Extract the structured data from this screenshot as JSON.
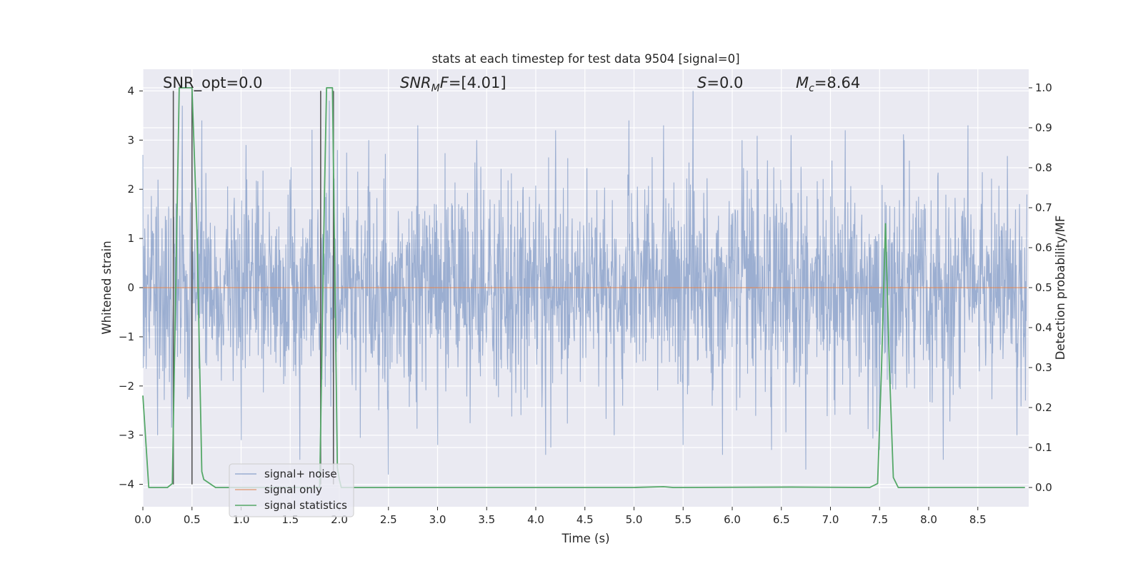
{
  "chart_data": {
    "type": "line",
    "title": "stats at each timestep for test data 9504 [signal=0]",
    "xlabel": "Time (s)",
    "ylabel": "Whitened strain",
    "ylabel_right": "Detection probability/MF",
    "xlim": [
      0.0,
      9.0
    ],
    "ylim": [
      -4.35,
      4.4
    ],
    "ylim_right": [
      -0.05,
      1.045
    ],
    "grid": true,
    "x_ticks": [
      "0.0",
      "0.5",
      "1.0",
      "1.5",
      "2.0",
      "2.5",
      "3.0",
      "3.5",
      "4.0",
      "4.5",
      "5.0",
      "5.5",
      "6.0",
      "6.5",
      "7.0",
      "7.5",
      "8.0",
      "8.5"
    ],
    "y_ticks": [
      "4",
      "3",
      "2",
      "1",
      "0",
      "−1",
      "−2",
      "−3",
      "−4"
    ],
    "y_right_ticks": [
      "1.0",
      "0.9",
      "0.8",
      "0.7",
      "0.6",
      "0.5",
      "0.4",
      "0.3",
      "0.2",
      "0.1",
      "0.0"
    ],
    "annotations": {
      "snr_opt": "SNR_opt=0.0",
      "snr_mf": "=[4.01]",
      "s_stat": "=0.0",
      "mc": "=8.64"
    },
    "legend": {
      "position": "lower-left",
      "entries": [
        "signal+ noise",
        "signal only",
        "signal statistics"
      ]
    },
    "series": [
      {
        "name": "signal+ noise",
        "color": "#4c72b0",
        "description": "whitened strain noise, range approx -3.8 to 4.0",
        "peaks": [
          [
            0.0,
            2.7
          ],
          [
            0.4,
            3.7
          ],
          [
            0.6,
            3.4
          ],
          [
            1.05,
            2.9
          ],
          [
            1.9,
            3.8
          ],
          [
            2.3,
            3.0
          ],
          [
            2.8,
            3.3
          ],
          [
            3.4,
            3.0
          ],
          [
            4.2,
            3.2
          ],
          [
            4.95,
            3.4
          ],
          [
            5.3,
            3.3
          ],
          [
            5.6,
            4.0
          ],
          [
            6.1,
            3.0
          ],
          [
            6.6,
            3.1
          ],
          [
            7.15,
            3.2
          ],
          [
            7.75,
            3.0
          ],
          [
            8.4,
            3.3
          ],
          [
            8.9,
            3.0
          ]
        ],
        "troughs": [
          [
            0.15,
            -3.0
          ],
          [
            0.5,
            -3.5
          ],
          [
            1.0,
            -3.1
          ],
          [
            1.6,
            -3.5
          ],
          [
            2.5,
            -3.8
          ],
          [
            3.0,
            -3.2
          ],
          [
            4.1,
            -3.4
          ],
          [
            4.8,
            -3.0
          ],
          [
            5.5,
            -3.2
          ],
          [
            5.9,
            -3.4
          ],
          [
            6.4,
            -3.3
          ],
          [
            6.75,
            -3.7
          ],
          [
            7.5,
            -3.3
          ],
          [
            8.15,
            -3.5
          ],
          [
            8.9,
            -3.0
          ]
        ]
      },
      {
        "name": "signal only",
        "color": "#dd8452",
        "x": [
          0.0,
          9.0
        ],
        "y": [
          0.0,
          0.0
        ]
      },
      {
        "name": "signal statistics",
        "color": "#55a868",
        "axis": "right",
        "x": [
          0.0,
          0.06,
          0.25,
          0.3,
          0.37,
          0.5,
          0.55,
          0.6,
          0.62,
          0.74,
          0.8,
          1.8,
          1.85,
          1.87,
          1.93,
          1.98,
          2.0,
          2.02,
          2.05,
          2.1,
          5.0,
          5.3,
          5.4,
          6.6,
          7.4,
          7.48,
          7.52,
          7.56,
          7.6,
          7.64,
          7.69,
          8.0,
          8.98
        ],
        "y": [
          0.23,
          0.0,
          0.0,
          0.01,
          1.0,
          1.0,
          0.65,
          0.04,
          0.02,
          0.0,
          0.0,
          0.0,
          0.75,
          1.0,
          1.0,
          0.05,
          0.02,
          0.0,
          0.0,
          0.0,
          0.0,
          0.002,
          0.0,
          0.001,
          0.0,
          0.01,
          0.3,
          0.66,
          0.3,
          0.025,
          0.0,
          0.0,
          0.0
        ]
      }
    ],
    "vertical_markers": [
      {
        "color": "#555555",
        "segments": [
          [
            0.31,
            -4.0,
            4.0
          ],
          [
            0.5,
            -4.0,
            4.0
          ],
          [
            1.81,
            -4.0,
            4.0
          ],
          [
            1.94,
            -4.0,
            4.0
          ]
        ]
      }
    ]
  }
}
